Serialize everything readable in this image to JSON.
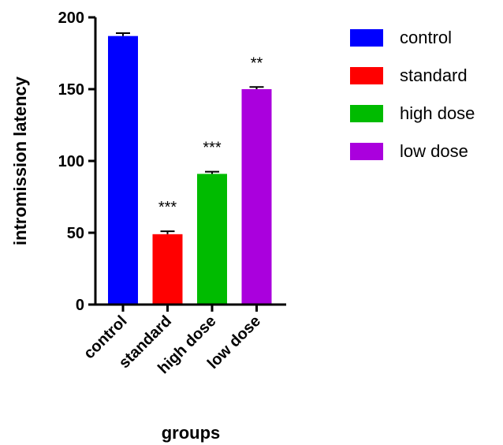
{
  "chart_data": {
    "type": "bar",
    "xlabel": "groups",
    "ylabel": "intromission latency",
    "ylim": [
      0,
      200
    ],
    "yticks": [
      0,
      50,
      100,
      150,
      200
    ],
    "categories": [
      "control",
      "standard",
      "high dose",
      "low dose"
    ],
    "values": [
      187,
      49,
      91,
      150
    ],
    "errors": [
      2,
      2,
      1.5,
      1.5
    ],
    "significance": [
      "",
      "***",
      "***",
      "**"
    ],
    "colors": [
      "#0000ff",
      "#ff0000",
      "#00bb00",
      "#aa00dd"
    ],
    "legend": {
      "position": "right",
      "entries": [
        "control",
        "standard",
        "high dose",
        "low dose"
      ]
    },
    "grid": false
  }
}
